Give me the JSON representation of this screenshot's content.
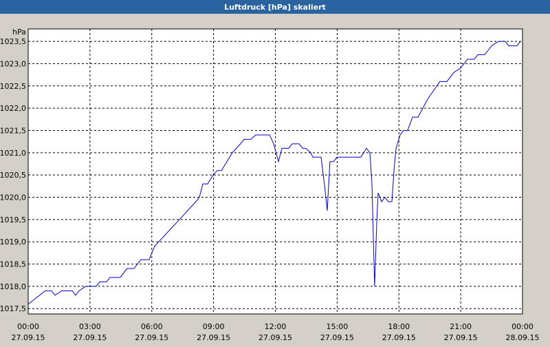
{
  "chart_data": {
    "type": "line",
    "title": "Luftdruck [hPa] skaliert",
    "y_unit": "hPa",
    "x": [
      0,
      0.83,
      1.13,
      1.3,
      1.63,
      2.14,
      2.3,
      2.47,
      2.8,
      3.3,
      3.47,
      3.8,
      3.97,
      4.47,
      4.8,
      5.14,
      5.47,
      5.87,
      6.14,
      8.14,
      8.31,
      8.48,
      8.71,
      8.98,
      9.18,
      9.38,
      9.65,
      9.91,
      10.31,
      10.48,
      10.81,
      11.05,
      11.72,
      11.92,
      12.15,
      12.32,
      12.65,
      12.82,
      13.15,
      13.32,
      13.48,
      13.72,
      13.82,
      14.22,
      14.38,
      14.52,
      14.65,
      14.82,
      14.99,
      16.15,
      16.42,
      16.59,
      16.69,
      16.82,
      16.92,
      16.99,
      17.16,
      17.32,
      17.49,
      17.66,
      17.76,
      17.86,
      18.06,
      18.22,
      18.42,
      18.66,
      18.93,
      19.16,
      19.39,
      19.99,
      20.33,
      20.66,
      20.99,
      21.33,
      21.66,
      21.83,
      22.16,
      22.5,
      22.83,
      23.16,
      23.33,
      23.73,
      23.9
    ],
    "series": [
      {
        "name": "Luftdruck",
        "color": "#0000c8",
        "values": [
          1017.6,
          1017.9,
          1017.9,
          1017.8,
          1017.9,
          1017.9,
          1017.8,
          1017.9,
          1018.0,
          1018.0,
          1018.1,
          1018.1,
          1018.2,
          1018.2,
          1018.4,
          1018.4,
          1018.6,
          1018.6,
          1018.9,
          1019.9,
          1020.0,
          1020.3,
          1020.3,
          1020.5,
          1020.6,
          1020.6,
          1020.8,
          1021.0,
          1021.2,
          1021.3,
          1021.3,
          1021.4,
          1021.4,
          1021.2,
          1020.8,
          1021.1,
          1021.1,
          1021.2,
          1021.2,
          1021.1,
          1021.1,
          1021.0,
          1020.9,
          1020.9,
          1020.3,
          1019.7,
          1020.8,
          1020.8,
          1020.9,
          1020.9,
          1021.1,
          1021.0,
          1020.3,
          1018.0,
          1019.4,
          1020.1,
          1019.9,
          1020.0,
          1019.9,
          1019.9,
          1020.6,
          1021.1,
          1021.4,
          1021.5,
          1021.5,
          1021.8,
          1021.8,
          1022.0,
          1022.2,
          1022.6,
          1022.6,
          1022.8,
          1022.9,
          1023.1,
          1023.1,
          1023.2,
          1023.2,
          1023.4,
          1023.5,
          1023.5,
          1023.4,
          1023.4,
          1023.5
        ]
      }
    ],
    "xlim": [
      0,
      24
    ],
    "xticks": [
      {
        "value": 0,
        "label": "00:00"
      },
      {
        "value": 3,
        "label": "03:00"
      },
      {
        "value": 6,
        "label": "06:00"
      },
      {
        "value": 9,
        "label": "09:00"
      },
      {
        "value": 12,
        "label": "12:00"
      },
      {
        "value": 15,
        "label": "15:00"
      },
      {
        "value": 18,
        "label": "18:00"
      },
      {
        "value": 21,
        "label": "21:00"
      },
      {
        "value": 24,
        "label": "00:00"
      }
    ],
    "xtick_dates": [
      "27.09.15",
      "27.09.15",
      "27.09.15",
      "27.09.15",
      "27.09.15",
      "27.09.15",
      "27.09.15",
      "27.09.15",
      "28.09.15"
    ],
    "ylim": [
      1017.38,
      1023.78
    ],
    "yticks": [
      {
        "value": 1017.5,
        "label": "1017,5"
      },
      {
        "value": 1018,
        "label": "1018,0"
      },
      {
        "value": 1018.5,
        "label": "1018,5"
      },
      {
        "value": 1019,
        "label": "1019,0"
      },
      {
        "value": 1019.5,
        "label": "1019,5"
      },
      {
        "value": 1020,
        "label": "1020,0"
      },
      {
        "value": 1020.5,
        "label": "1020,5"
      },
      {
        "value": 1021,
        "label": "1021,0"
      },
      {
        "value": 1021.5,
        "label": "1021,5"
      },
      {
        "value": 1022,
        "label": "1022,0"
      },
      {
        "value": 1022.5,
        "label": "1022,5"
      },
      {
        "value": 1023,
        "label": "1023,0"
      },
      {
        "value": 1023.5,
        "label": "1023,5"
      }
    ],
    "grid": true
  }
}
